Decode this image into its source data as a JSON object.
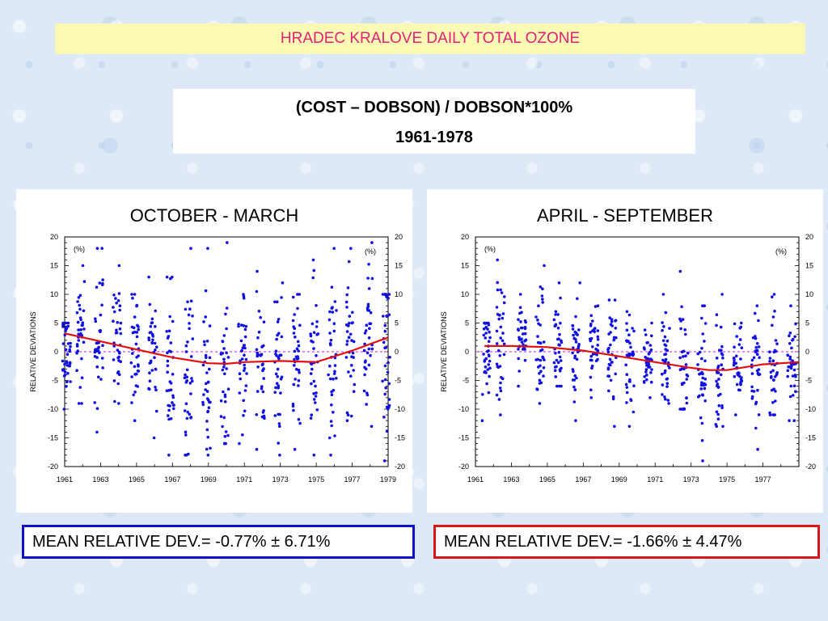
{
  "header": {
    "title": "HRADEC KRALOVE DAILY TOTAL OZONE"
  },
  "subtitle": {
    "line1": "(COST – DOBSON) / DOBSON*100%",
    "line2": "1961-1978"
  },
  "colors": {
    "points": "#1010e0",
    "trend": "#e01010",
    "zero_line": "#e040e0",
    "title": "#e0207a"
  },
  "chart_data": [
    {
      "type": "scatter",
      "title": "OCTOBER - MARCH",
      "ylabel": "RELATIVE DEVIATIONS",
      "unit_label": "(%)",
      "ylim": [
        -20,
        20
      ],
      "yticks": [
        "20",
        "15",
        "10",
        "5",
        "0",
        "-5",
        "-10",
        "-15",
        "-20"
      ],
      "xlim": [
        1961,
        1979
      ],
      "xticks": [
        "1961",
        "1963",
        "1965",
        "1967",
        "1969",
        "1971",
        "1973",
        "1975",
        "1977",
        "1979"
      ],
      "zero_line": 0,
      "trend": {
        "x": [
          1961,
          1963,
          1965,
          1967,
          1969,
          1970,
          1971,
          1973,
          1975,
          1977,
          1979
        ],
        "y": [
          3.2,
          1.8,
          0.4,
          -1.0,
          -2.0,
          -2.1,
          -1.8,
          -1.6,
          -1.8,
          0.2,
          2.5
        ]
      },
      "clusters": [
        {
          "x": 1961.1,
          "mean": 0.0,
          "min": -10.0,
          "max": 5.0
        },
        {
          "x": 1961.9,
          "mean": 1.5,
          "min": -9.0,
          "max": 15.0
        },
        {
          "x": 1962.9,
          "mean": 3.0,
          "min": -14.0,
          "max": 18.0
        },
        {
          "x": 1963.9,
          "mean": 2.5,
          "min": -9.0,
          "max": 15.0
        },
        {
          "x": 1964.9,
          "mean": 0.5,
          "min": -12.0,
          "max": 10.0
        },
        {
          "x": 1965.9,
          "mean": 1.0,
          "min": -15.0,
          "max": 13.0
        },
        {
          "x": 1966.9,
          "mean": -3.0,
          "min": -18.0,
          "max": 13.0
        },
        {
          "x": 1967.9,
          "mean": -2.0,
          "min": -18.0,
          "max": 18.0
        },
        {
          "x": 1968.9,
          "mean": -3.0,
          "min": -18.0,
          "max": 18.0
        },
        {
          "x": 1969.9,
          "mean": -3.0,
          "min": -16.0,
          "max": 19.0
        },
        {
          "x": 1970.9,
          "mean": -1.0,
          "min": -16.0,
          "max": 10.0
        },
        {
          "x": 1971.9,
          "mean": -2.0,
          "min": -17.0,
          "max": 14.0
        },
        {
          "x": 1972.9,
          "mean": -2.0,
          "min": -18.0,
          "max": 12.0
        },
        {
          "x": 1973.9,
          "mean": -2.0,
          "min": -17.0,
          "max": 10.0
        },
        {
          "x": 1974.9,
          "mean": -1.0,
          "min": -18.0,
          "max": 16.0
        },
        {
          "x": 1975.9,
          "mean": -1.0,
          "min": -18.0,
          "max": 18.0
        },
        {
          "x": 1976.9,
          "mean": 1.0,
          "min": -12.0,
          "max": 18.0
        },
        {
          "x": 1977.9,
          "mean": 3.0,
          "min": -13.0,
          "max": 19.0
        },
        {
          "x": 1978.9,
          "mean": 2.0,
          "min": -19.0,
          "max": 10.0
        }
      ]
    },
    {
      "type": "scatter",
      "title": "APRIL - SEPTEMBER",
      "ylabel": "RELATIVE DEVIATIONS",
      "unit_label": "(%)",
      "ylim": [
        -20,
        20
      ],
      "yticks": [
        "20",
        "15",
        "10",
        "5",
        "0",
        "-5",
        "-10",
        "-15",
        "-20"
      ],
      "xlim": [
        1961,
        1979
      ],
      "xticks": [
        "1961",
        "1963",
        "1965",
        "1967",
        "1969",
        "1971",
        "1973",
        "1975",
        "1977"
      ],
      "zero_line": 0,
      "trend": {
        "x": [
          1961.5,
          1963,
          1965,
          1967,
          1969,
          1971,
          1973,
          1974,
          1975,
          1977,
          1979
        ],
        "y": [
          1.0,
          1.0,
          0.8,
          0.2,
          -0.8,
          -1.8,
          -2.8,
          -3.2,
          -3.2,
          -2.2,
          -1.8
        ]
      },
      "clusters": [
        {
          "x": 1961.6,
          "mean": -1.0,
          "min": -12.0,
          "max": 5.0
        },
        {
          "x": 1962.4,
          "mean": 1.0,
          "min": -11.0,
          "max": 16.0
        },
        {
          "x": 1963.6,
          "mean": 2.0,
          "min": -6.0,
          "max": 10.0
        },
        {
          "x": 1964.6,
          "mean": 2.0,
          "min": -9.0,
          "max": 15.0
        },
        {
          "x": 1965.6,
          "mean": 1.0,
          "min": -6.0,
          "max": 12.0
        },
        {
          "x": 1966.6,
          "mean": 0.0,
          "min": -12.0,
          "max": 12.0
        },
        {
          "x": 1967.6,
          "mean": 0.5,
          "min": -8.0,
          "max": 8.0
        },
        {
          "x": 1968.6,
          "mean": 0.0,
          "min": -13.0,
          "max": 9.0
        },
        {
          "x": 1969.6,
          "mean": -2.0,
          "min": -13.0,
          "max": 7.0
        },
        {
          "x": 1970.6,
          "mean": -2.0,
          "min": -8.0,
          "max": 5.0
        },
        {
          "x": 1971.6,
          "mean": -2.0,
          "min": -9.0,
          "max": 10.0
        },
        {
          "x": 1972.6,
          "mean": -3.0,
          "min": -10.0,
          "max": 14.0
        },
        {
          "x": 1973.6,
          "mean": -4.0,
          "min": -19.0,
          "max": 8.0
        },
        {
          "x": 1974.6,
          "mean": -4.0,
          "min": -13.0,
          "max": 10.0
        },
        {
          "x": 1975.6,
          "mean": -3.0,
          "min": -11.0,
          "max": 5.0
        },
        {
          "x": 1976.6,
          "mean": -3.0,
          "min": -17.0,
          "max": 8.0
        },
        {
          "x": 1977.6,
          "mean": -2.0,
          "min": -11.0,
          "max": 10.0
        },
        {
          "x": 1978.6,
          "mean": -2.0,
          "min": -12.0,
          "max": 8.0
        }
      ]
    }
  ],
  "mean_left": "MEAN RELATIVE DEV.= -0.77% ± 6.71%",
  "mean_right": "MEAN RELATIVE DEV.= -1.66% ± 4.47%"
}
